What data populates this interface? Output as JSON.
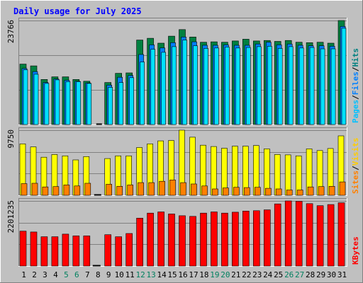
{
  "chart_data": {
    "type": "bar",
    "title": "Daily usage for July 2025",
    "x": [
      "1",
      "2",
      "3",
      "4",
      "5",
      "6",
      "7",
      "8",
      "9",
      "10",
      "11",
      "12",
      "13",
      "14",
      "15",
      "16",
      "17",
      "18",
      "19",
      "20",
      "21",
      "22",
      "23",
      "24",
      "25",
      "26",
      "27",
      "28",
      "29",
      "30",
      "31"
    ],
    "weekend_days": [
      "5",
      "6",
      "12",
      "13",
      "19",
      "20",
      "26",
      "27"
    ],
    "panels": [
      {
        "name": "hits-files-pages",
        "y_max_label": "23766",
        "ylim": [
          0,
          23766
        ],
        "legend": [
          "Pages",
          "Files",
          "Hits"
        ],
        "series": [
          {
            "name": "Hits",
            "color": "#008040",
            "values": [
              13800,
              13400,
              10300,
              10900,
              10900,
              10300,
              9900,
              0,
              9600,
              11700,
              11800,
              19300,
              19700,
              18600,
              20200,
              21700,
              20000,
              18800,
              18900,
              18800,
              19100,
              19500,
              19100,
              19200,
              19000,
              19200,
              18800,
              18700,
              18800,
              18600,
              23766
            ]
          },
          {
            "name": "Files",
            "color": "#0080ff",
            "values": [
              12800,
              12100,
              9600,
              10400,
              10100,
              9900,
              9500,
              0,
              9000,
              10800,
              11200,
              16000,
              18200,
              17500,
              18700,
              20000,
              18900,
              18100,
              18100,
              18200,
              18100,
              18100,
              18400,
              18800,
              18200,
              18400,
              18100,
              18000,
              18000,
              17900,
              22400
            ]
          },
          {
            "name": "Pages",
            "color": "#00e0ff",
            "values": [
              12500,
              11500,
              9400,
              10200,
              9800,
              9800,
              9400,
              0,
              8500,
              9600,
              10700,
              14300,
              17200,
              16500,
              17800,
              19300,
              18000,
              17400,
              17500,
              17700,
              17500,
              17600,
              17800,
              17900,
              17400,
              17800,
              17500,
              17600,
              17300,
              17300,
              22000
            ]
          }
        ]
      },
      {
        "name": "visits-sites",
        "y_max_label": "9750",
        "ylim": [
          0,
          9750
        ],
        "legend": [
          "Sites",
          "Visits"
        ],
        "series": [
          {
            "name": "Visits",
            "color": "#ffff00",
            "values": [
              7700,
              7250,
              5700,
              6100,
              5900,
              5300,
              5800,
              0,
              5500,
              5900,
              5900,
              7150,
              7700,
              8150,
              8200,
              9750,
              8700,
              7500,
              7300,
              7050,
              7350,
              7350,
              7450,
              6950,
              6100,
              6050,
              5900,
              6950,
              6700,
              7000,
              8900
            ]
          },
          {
            "name": "Sites",
            "color": "#ff8000",
            "values": [
              1750,
              1800,
              1250,
              1300,
              1550,
              1400,
              1800,
              0,
              1650,
              1350,
              1550,
              1900,
              1900,
              2100,
              2300,
              1900,
              1700,
              1400,
              950,
              1100,
              1200,
              1150,
              1200,
              1050,
              950,
              800,
              800,
              1250,
              1300,
              1350,
              2000
            ]
          }
        ]
      },
      {
        "name": "kbytes",
        "y_max_label": "2201235",
        "ylim": [
          0,
          2201235
        ],
        "legend": [
          "KBytes"
        ],
        "series": [
          {
            "name": "KBytes",
            "color": "#ff0000",
            "values": [
              1180000,
              1150000,
              990000,
              990000,
              1080000,
              1020000,
              1020000,
              0,
              1060000,
              990000,
              1100000,
              1620000,
              1790000,
              1830000,
              1760000,
              1700000,
              1680000,
              1790000,
              1830000,
              1790000,
              1820000,
              1860000,
              1870000,
              1900000,
              2100000,
              2201235,
              2190000,
              2110000,
              2040000,
              2080000,
              2140000
            ]
          }
        ]
      }
    ]
  }
}
